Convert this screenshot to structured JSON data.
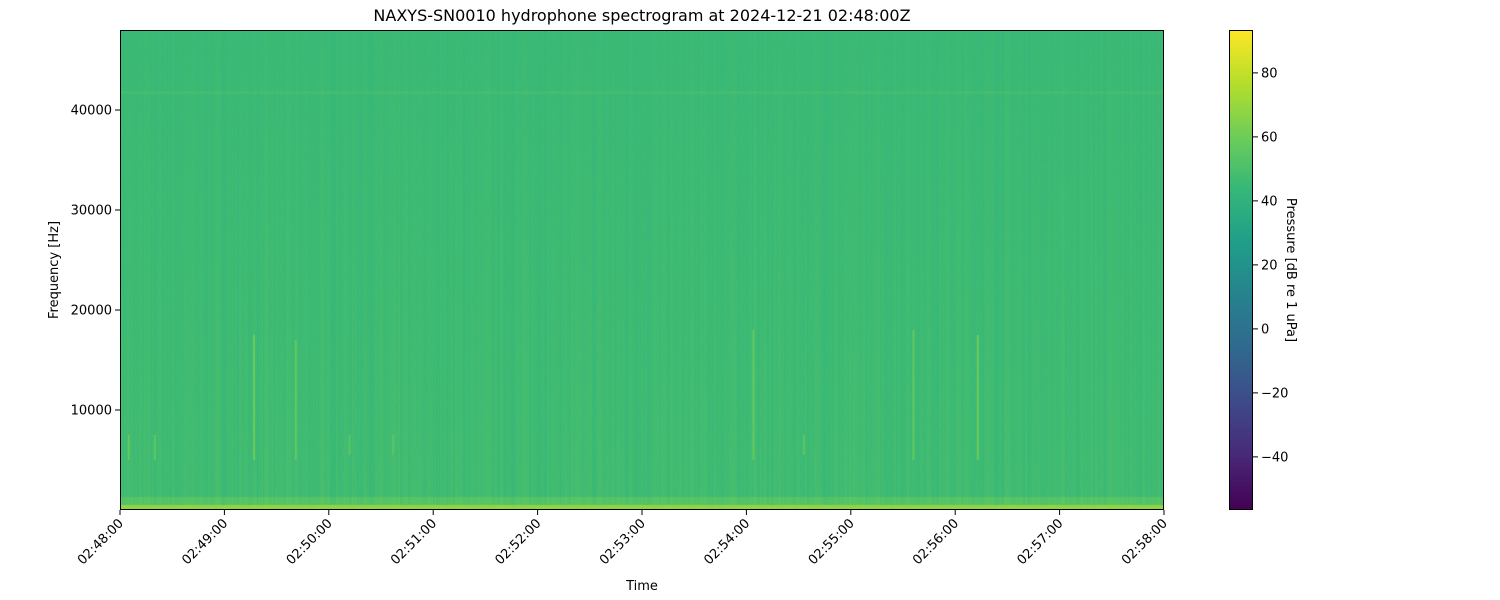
{
  "chart_data": {
    "type": "heatmap",
    "title": "NAXYS-SN0010 hydrophone spectrogram at 2024-12-21 02:48:00Z",
    "xlabel": "Time",
    "ylabel": "Frequency [Hz]",
    "colorbar_label": "Pressure [dB re 1 uPa]",
    "colormap": "viridis",
    "xlim": [
      "02:48:00",
      "02:58:00"
    ],
    "ylim": [
      0,
      48000
    ],
    "clim": [
      -56.6,
      93.4
    ],
    "xticks": [
      "02:48:00",
      "02:49:00",
      "02:50:00",
      "02:51:00",
      "02:52:00",
      "02:53:00",
      "02:54:00",
      "02:55:00",
      "02:56:00",
      "02:57:00",
      "02:58:00"
    ],
    "yticks": [
      10000,
      20000,
      30000,
      40000
    ],
    "yticklabels": [
      "10000",
      "20000",
      "30000",
      "40000"
    ],
    "cticks": [
      80,
      60,
      40,
      20,
      0,
      -20,
      -40
    ],
    "cticklabels": [
      "80",
      "60",
      "40",
      "20",
      "0",
      "−20",
      "−40"
    ],
    "grid": false,
    "background_level_db": 47,
    "low_frequency_band": {
      "freq_range_hz": [
        0,
        600
      ],
      "level_db": 68
    },
    "tonal_band": {
      "freq_hz": 41800,
      "level_db": 50
    },
    "transients": [
      {
        "time": "02:48:05",
        "freq_range_hz": [
          5000,
          7500
        ],
        "level_db": 60
      },
      {
        "time": "02:48:20",
        "freq_range_hz": [
          5000,
          7500
        ],
        "level_db": 60
      },
      {
        "time": "02:49:17",
        "freq_range_hz": [
          5000,
          17500
        ],
        "level_db": 64
      },
      {
        "time": "02:49:41",
        "freq_range_hz": [
          5000,
          17000
        ],
        "level_db": 60
      },
      {
        "time": "02:50:12",
        "freq_range_hz": [
          5500,
          7500
        ],
        "level_db": 58
      },
      {
        "time": "02:50:37",
        "freq_range_hz": [
          5500,
          7500
        ],
        "level_db": 57
      },
      {
        "time": "02:54:04",
        "freq_range_hz": [
          5000,
          18000
        ],
        "level_db": 60
      },
      {
        "time": "02:54:33",
        "freq_range_hz": [
          5500,
          7500
        ],
        "level_db": 58
      },
      {
        "time": "02:55:36",
        "freq_range_hz": [
          5000,
          18000
        ],
        "level_db": 60
      },
      {
        "time": "02:56:13",
        "freq_range_hz": [
          5000,
          17500
        ],
        "level_db": 64
      }
    ]
  }
}
